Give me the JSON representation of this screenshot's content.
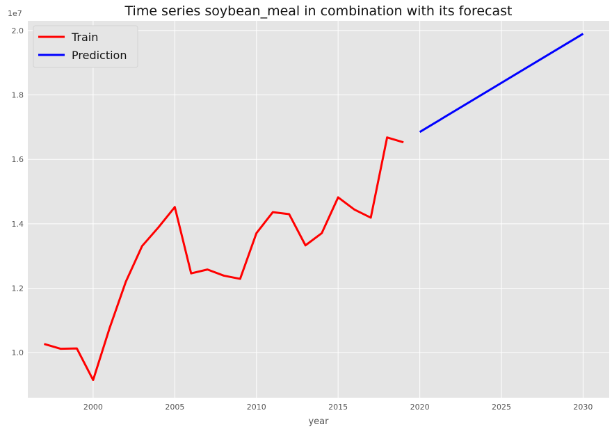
{
  "chart_data": {
    "type": "line",
    "title": "Time series soybean_meal in combination with its forecast",
    "xlabel": "year",
    "ylabel": "",
    "y_offset_label": "1e7",
    "xlim": [
      1996.0,
      2031.6
    ],
    "ylim": [
      0.86,
      2.03
    ],
    "x_ticks": [
      2000,
      2005,
      2010,
      2015,
      2020,
      2025,
      2030
    ],
    "x_tick_labels": [
      "2000",
      "2005",
      "2010",
      "2015",
      "2020",
      "2025",
      "2030"
    ],
    "y_ticks": [
      1.0,
      1.2,
      1.4,
      1.6,
      1.8,
      2.0
    ],
    "y_tick_labels": [
      "1.0",
      "1.2",
      "1.4",
      "1.6",
      "1.8",
      "2.0"
    ],
    "grid": true,
    "legend_position": "top-left",
    "series": [
      {
        "name": "Train",
        "color": "#ff0000",
        "x": [
          1997,
          1998,
          1999,
          2000,
          2001,
          2002,
          2003,
          2004,
          2005,
          2006,
          2007,
          2008,
          2009,
          2010,
          2011,
          2012,
          2013,
          2014,
          2015,
          2016,
          2017,
          2018,
          2019
        ],
        "values": [
          1.027,
          1.012,
          1.013,
          0.915,
          1.075,
          1.22,
          1.331,
          1.389,
          1.452,
          1.246,
          1.258,
          1.239,
          1.229,
          1.371,
          1.436,
          1.43,
          1.333,
          1.371,
          1.482,
          1.444,
          1.419,
          1.668,
          1.653
        ]
      },
      {
        "name": "Prediction",
        "color": "#0000ff",
        "x": [
          2020,
          2030
        ],
        "values": [
          1.685,
          1.99
        ]
      }
    ]
  }
}
